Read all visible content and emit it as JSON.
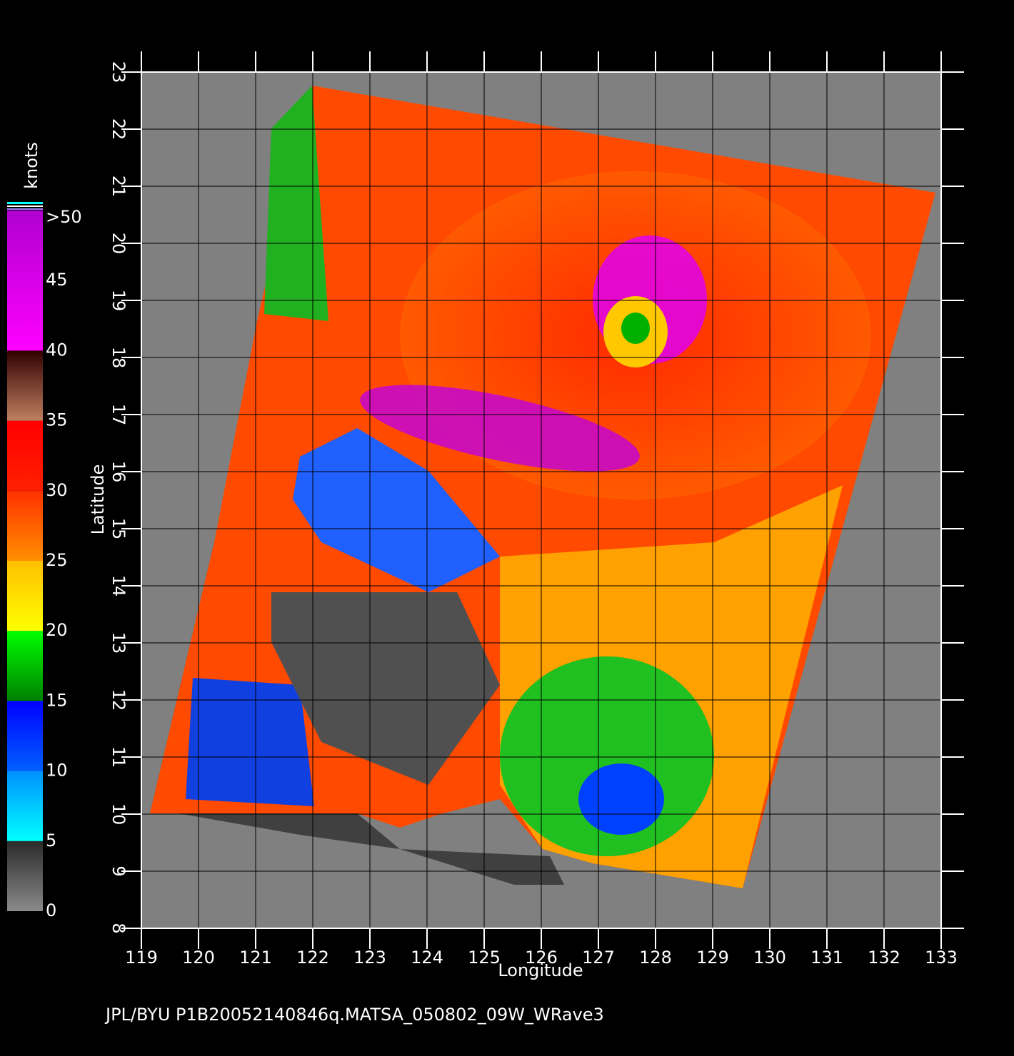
{
  "map": {
    "xlabel": "Longitude",
    "ylabel": "Latitude",
    "xlim": [
      119,
      133
    ],
    "ylim": [
      8,
      23
    ],
    "xticks": [
      119,
      120,
      121,
      122,
      123,
      124,
      125,
      126,
      127,
      128,
      129,
      130,
      131,
      132,
      133
    ],
    "yticks": [
      8,
      9,
      10,
      11,
      12,
      13,
      14,
      15,
      16,
      17,
      18,
      19,
      20,
      21,
      22,
      23
    ],
    "grid": true
  },
  "colorbar": {
    "title": "knots",
    "range": [
      0,
      50
    ],
    "ticks": [
      0,
      5,
      10,
      15,
      20,
      25,
      30,
      35,
      40,
      {
        "value": 50,
        "label": ">50"
      }
    ],
    "tick_labels_extra": [
      45
    ],
    "colors": [
      [
        "#8a8a8a",
        "#2a2a2a"
      ],
      [
        "#00ffff",
        "#0090ff"
      ],
      [
        "#0060ff",
        "#0000ff"
      ],
      [
        "#008000",
        "#00ff00"
      ],
      [
        "#ffff00",
        "#ffc000"
      ],
      [
        "#ff9000",
        "#ff3000"
      ],
      [
        "#ff2000",
        "#ff0000"
      ],
      [
        "#c08060",
        "#300000"
      ],
      [
        "#ff00ff",
        "#b000d0"
      ],
      [
        "#a000d0",
        "#6000c0"
      ]
    ]
  },
  "footer": "JPL/BYU  P1B20052140846q.MATSA_050802_09W_WRave3"
}
